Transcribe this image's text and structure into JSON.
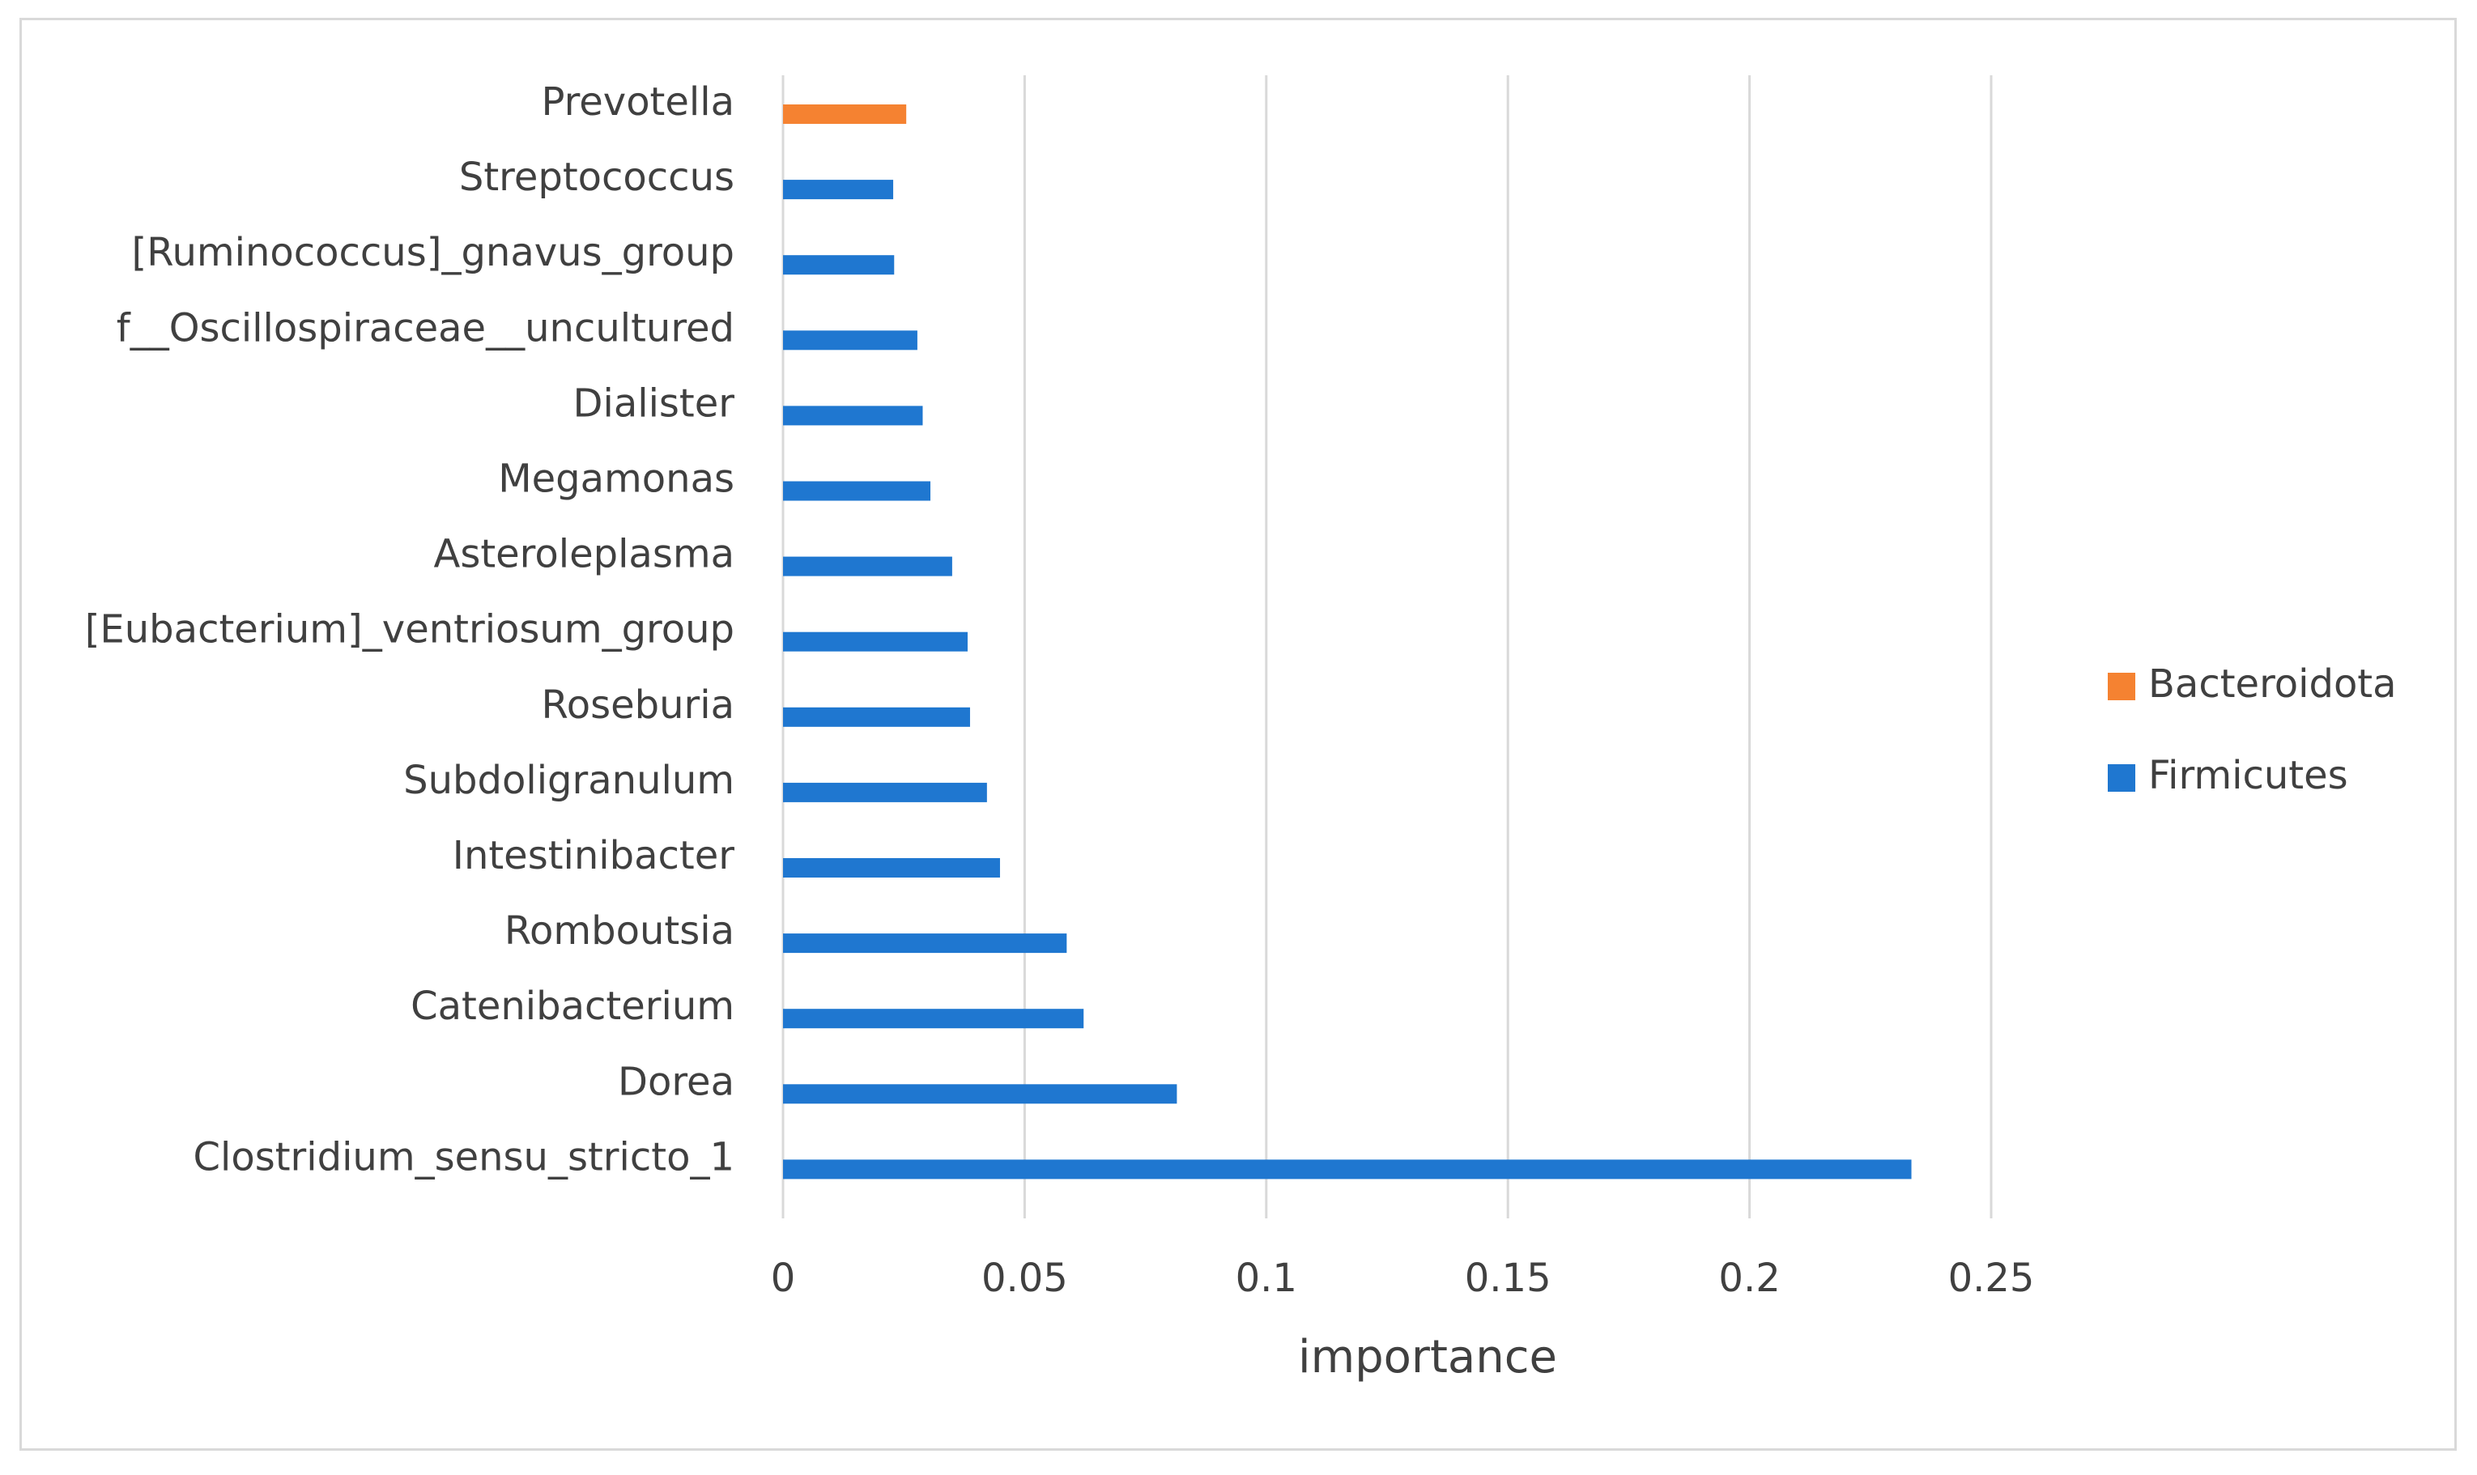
{
  "chart_data": {
    "type": "bar",
    "orientation": "horizontal",
    "title": "",
    "xlabel": "importance",
    "ylabel": "",
    "xlim": [
      0,
      0.25
    ],
    "xticks": [
      "0",
      "0.05",
      "0.1",
      "0.15",
      "0.2",
      "0.25"
    ],
    "grid": "vertical",
    "legend_position": "right",
    "categories": [
      "Prevotella",
      "Streptococcus",
      "[Ruminococcus]_gnavus_group",
      "f__Oscillospiraceae__uncultured",
      "Dialister",
      "Megamonas",
      "Asteroleplasma",
      "[Eubacterium]_ventriosum_group",
      "Roseburia",
      "Subdoligranulum",
      "Intestinibacter",
      "Romboutsia",
      "Catenibacterium",
      "Dorea",
      "Clostridium_sensu_stricto_1"
    ],
    "series": [
      {
        "name": "Bacteroidota",
        "color": "#f58231",
        "values": [
          0.0255,
          null,
          null,
          null,
          null,
          null,
          null,
          null,
          null,
          null,
          null,
          null,
          null,
          null,
          null
        ]
      },
      {
        "name": "Firmicutes",
        "color": "#1f77d0",
        "values": [
          null,
          0.0228,
          0.023,
          0.0278,
          0.0289,
          0.0305,
          0.035,
          0.0382,
          0.0387,
          0.0422,
          0.0449,
          0.0587,
          0.0622,
          0.0815,
          0.2335
        ]
      }
    ],
    "legend": [
      "Bacteroidota",
      "Firmicutes"
    ]
  }
}
